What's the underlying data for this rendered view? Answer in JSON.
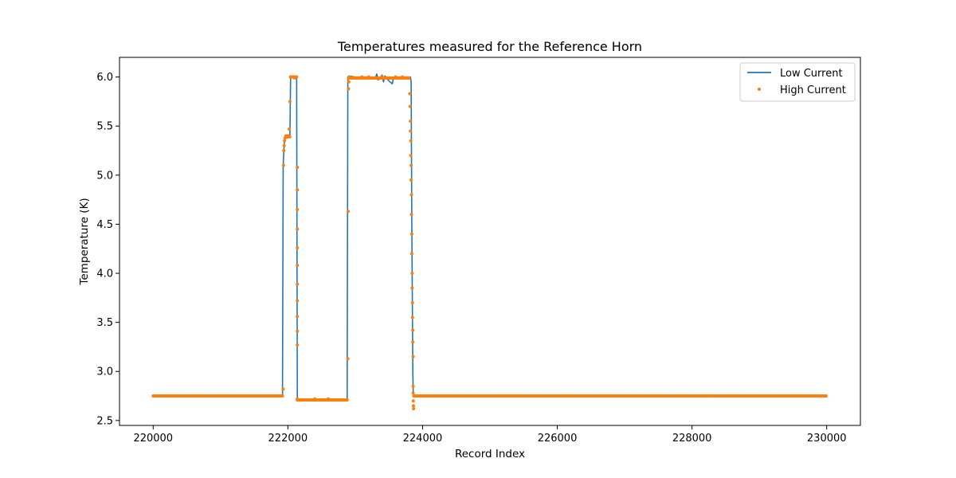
{
  "chart_data": {
    "type": "line",
    "title": "Temperatures measured for the Reference Horn",
    "xlabel": "Record Index",
    "ylabel": "Temperature (K)",
    "xlim": [
      219500,
      230500
    ],
    "ylim": [
      2.45,
      6.2
    ],
    "xticks": [
      220000,
      222000,
      224000,
      226000,
      228000,
      230000
    ],
    "yticks": [
      2.5,
      3.0,
      3.5,
      4.0,
      4.5,
      5.0,
      5.5,
      6.0
    ],
    "ytick_labels": [
      "2.5",
      "3.0",
      "3.5",
      "4.0",
      "4.5",
      "5.0",
      "5.5",
      "6.0"
    ],
    "grid": false,
    "legend_position": "top-right",
    "series": [
      {
        "name": "Low Current",
        "style": "line",
        "color": "#1f77b4",
        "x": [
          220000,
          221920,
          221930,
          221950,
          221980,
          222000,
          222030,
          222040,
          222060,
          222100,
          222130,
          222140,
          222150,
          222250,
          222300,
          222320,
          222340,
          222400,
          222450,
          222600,
          222700,
          222800,
          222880,
          222890,
          222900,
          223000,
          223100,
          223200,
          223300,
          223320,
          223340,
          223400,
          223420,
          223440,
          223500,
          223550,
          223570,
          223600,
          223700,
          223800,
          223820,
          223830,
          223840,
          223850,
          223855,
          223860,
          223870,
          224000,
          230000
        ],
        "y": [
          2.75,
          2.75,
          5.1,
          5.38,
          5.4,
          5.39,
          5.4,
          6.0,
          6.01,
          6.0,
          5.99,
          2.71,
          2.71,
          2.71,
          2.72,
          2.7,
          2.72,
          2.71,
          2.72,
          2.71,
          2.72,
          2.71,
          2.71,
          6.0,
          6.01,
          6.0,
          6.0,
          6.0,
          5.99,
          6.03,
          5.97,
          6.02,
          5.95,
          6.01,
          5.96,
          5.93,
          6.0,
          6.0,
          6.0,
          6.0,
          6.0,
          5.95,
          4.5,
          3.5,
          3.0,
          2.8,
          2.75,
          2.75,
          2.75
        ]
      },
      {
        "name": "High Current",
        "style": "scatter",
        "color": "#ff7f0e",
        "x": [
          221930,
          221935,
          221940,
          221945,
          221950,
          221960,
          221970,
          221980,
          221990,
          222000,
          222010,
          222020,
          222030,
          222040,
          222050,
          222060,
          222080,
          222100,
          222120,
          222130,
          222140,
          222140,
          222140,
          222140,
          222140,
          222140,
          222140,
          222140,
          222140,
          222140,
          222140,
          222140,
          222140,
          222140,
          222150,
          222300,
          222400,
          222500,
          222600,
          222700,
          222800,
          222880,
          222890,
          222895,
          222900,
          222905,
          222910,
          223000,
          223100,
          223200,
          223300,
          223400,
          223500,
          223600,
          223700,
          223800,
          223810,
          223815,
          223820,
          223820,
          223825,
          223825,
          223830,
          223830,
          223835,
          223835,
          223840,
          223840,
          223845,
          223845,
          223850,
          223850,
          223855,
          223855,
          223860,
          223860,
          223860,
          223862,
          223864,
          223866
        ],
        "y": [
          2.82,
          5.1,
          5.25,
          5.3,
          5.35,
          5.38,
          5.4,
          5.39,
          5.4,
          5.39,
          5.4,
          5.47,
          5.75,
          6.0,
          6.0,
          6.0,
          6.0,
          5.99,
          6.0,
          6.0,
          5.08,
          4.85,
          4.65,
          4.45,
          4.26,
          4.08,
          3.89,
          3.72,
          3.56,
          3.41,
          3.27,
          2.72,
          2.71,
          2.71,
          2.71,
          2.71,
          2.72,
          2.71,
          2.72,
          2.71,
          2.71,
          2.71,
          3.13,
          4.63,
          5.88,
          5.95,
          6.0,
          5.99,
          6.0,
          6.0,
          5.99,
          6.0,
          5.99,
          6.0,
          6.0,
          5.99,
          5.83,
          5.7,
          5.55,
          5.45,
          5.35,
          5.2,
          5.1,
          4.95,
          4.8,
          4.6,
          4.4,
          4.2,
          4.0,
          3.85,
          3.7,
          3.55,
          3.42,
          3.3,
          3.15,
          2.85,
          2.78,
          2.7,
          2.65,
          2.62
        ]
      }
    ]
  }
}
